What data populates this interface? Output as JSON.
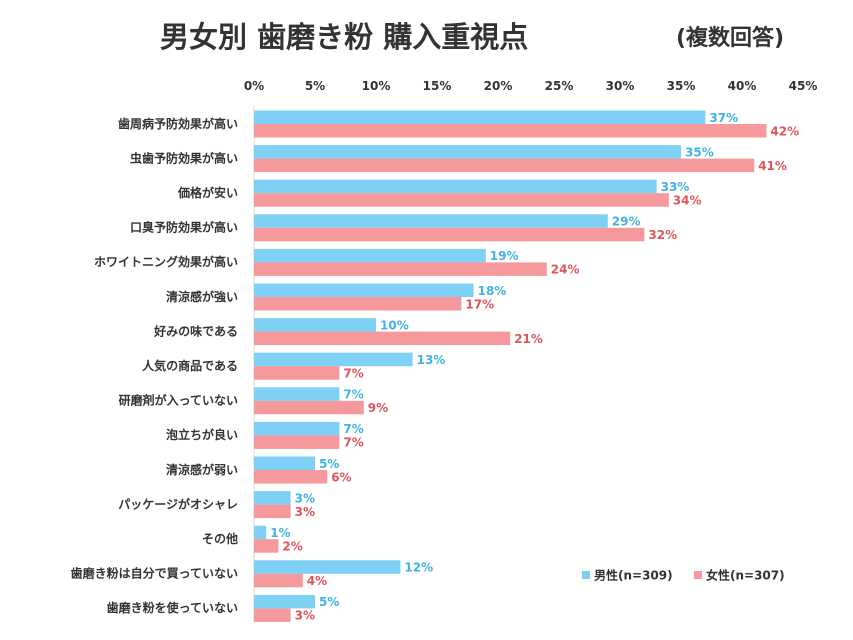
{
  "chart_data": {
    "type": "bar",
    "orientation": "horizontal",
    "title": "男女別 歯磨き粉 購入重視点",
    "subtitle": "(複数回答)",
    "categories": [
      "歯周病予防効果が高い",
      "虫歯予防効果が高い",
      "価格が安い",
      "口臭予防効果が高い",
      "ホワイトニング効果が高い",
      "清涼感が強い",
      "好みの味である",
      "人気の商品である",
      "研磨剤が入っていない",
      "泡立ちが良い",
      "清涼感が弱い",
      "パッケージがオシャレ",
      "その他",
      "歯磨き粉は自分で買っていない",
      "歯磨き粉を使っていない"
    ],
    "series": [
      {
        "name": "男性(n=309)",
        "color": "#7fd0f5",
        "label_color": "#3fb2e6",
        "values": [
          37,
          35,
          33,
          29,
          19,
          18,
          10,
          13,
          7,
          7,
          5,
          3,
          1,
          12,
          5
        ]
      },
      {
        "name": "女性(n=307)",
        "color": "#f5999c",
        "label_color": "#e0555c",
        "values": [
          42,
          41,
          34,
          32,
          24,
          17,
          21,
          7,
          9,
          7,
          6,
          3,
          2,
          4,
          3
        ]
      }
    ],
    "xlim": [
      0,
      45
    ],
    "x_ticks": [
      "0%",
      "5%",
      "10%",
      "15%",
      "20%",
      "25%",
      "30%",
      "35%",
      "40%",
      "45%"
    ],
    "x_tick_values": [
      0,
      5,
      10,
      15,
      20,
      25,
      30,
      35,
      40,
      45
    ],
    "value_suffix": "%",
    "axis_position": "top",
    "grid": false,
    "legend_position": "bottom-right"
  }
}
